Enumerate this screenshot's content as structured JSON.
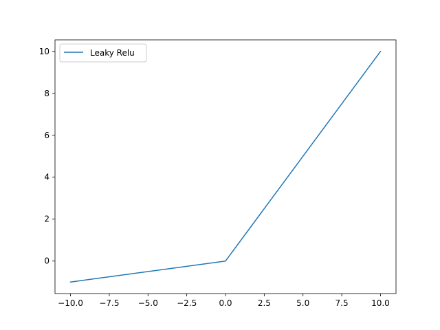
{
  "chart_data": {
    "type": "line",
    "title": "",
    "xlabel": "",
    "ylabel": "",
    "xlim": [
      -11.0,
      11.0
    ],
    "ylim": [
      -1.55,
      10.55
    ],
    "xticks": [
      -10.0,
      -7.5,
      -5.0,
      -2.5,
      0.0,
      2.5,
      5.0,
      7.5,
      10.0
    ],
    "xtick_labels": [
      "−10.0",
      "−7.5",
      "−5.0",
      "−2.5",
      "0.0",
      "2.5",
      "5.0",
      "7.5",
      "10.0"
    ],
    "yticks": [
      0,
      2,
      4,
      6,
      8,
      10
    ],
    "ytick_labels": [
      "0",
      "2",
      "4",
      "6",
      "8",
      "10"
    ],
    "grid": false,
    "legend_position": "upper-left",
    "series": [
      {
        "name": "Leaky Relu",
        "color": "#1f77b4",
        "x": [
          -10.0,
          0.0,
          10.0
        ],
        "y": [
          -1.0,
          0.0,
          10.0
        ]
      }
    ]
  }
}
